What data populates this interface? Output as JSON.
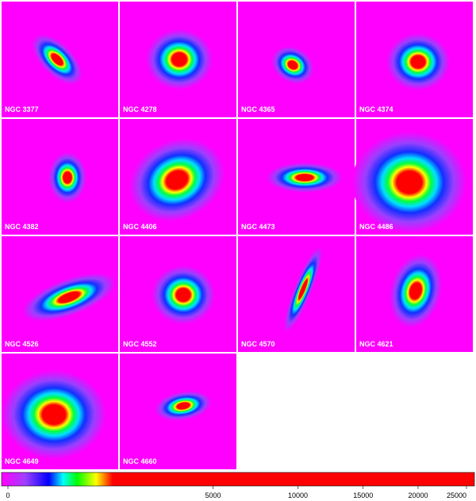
{
  "panels": [
    {
      "label": "NGC 3377"
    },
    {
      "label": "NGC 4278"
    },
    {
      "label": "NGC 4365"
    },
    {
      "label": "NGC 4374"
    },
    {
      "label": "NGC 4382"
    },
    {
      "label": "NGC 4406"
    },
    {
      "label": "NGC 4473"
    },
    {
      "label": "NGC 4486"
    },
    {
      "label": "NGC 4526"
    },
    {
      "label": "NGC 4552"
    },
    {
      "label": "NGC 4570"
    },
    {
      "label": "NGC 4621"
    },
    {
      "label": "NGC 4649"
    },
    {
      "label": "NGC 4660"
    }
  ],
  "colorbar": {
    "scale": "sqrt",
    "lim": [
      0,
      25000
    ],
    "ticks": [
      0,
      5000,
      10000,
      15000,
      20000,
      25000
    ]
  }
}
